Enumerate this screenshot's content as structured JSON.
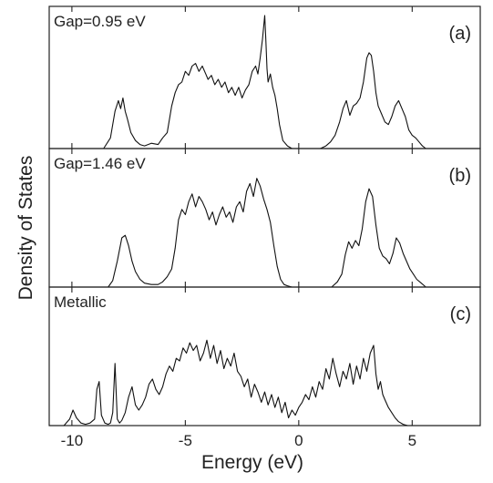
{
  "chart_data": {
    "type": "line",
    "ylabel": "Density of States",
    "xlabel": "Energy (eV)",
    "xlim": [
      -11,
      8
    ],
    "xticks": [
      -10,
      -5,
      0,
      5
    ],
    "xtick_labels": [
      "-10",
      "-5",
      "0",
      "5"
    ],
    "yaxis_ticks_shown": false,
    "grid": false,
    "panels": [
      {
        "tag": "(a)",
        "annotation": "Gap=0.95 eV",
        "ylim": [
          0,
          1
        ],
        "x": [
          -11,
          -8.6,
          -8.3,
          -8.1,
          -7.95,
          -7.85,
          -7.75,
          -7.65,
          -7.55,
          -7.4,
          -7.2,
          -7.0,
          -6.8,
          -6.5,
          -6.2,
          -6.0,
          -5.8,
          -5.6,
          -5.45,
          -5.3,
          -5.15,
          -5.0,
          -4.85,
          -4.7,
          -4.55,
          -4.4,
          -4.25,
          -4.1,
          -4.0,
          -3.85,
          -3.7,
          -3.55,
          -3.4,
          -3.25,
          -3.1,
          -2.95,
          -2.8,
          -2.65,
          -2.5,
          -2.35,
          -2.2,
          -2.05,
          -1.9,
          -1.8,
          -1.7,
          -1.6,
          -1.5,
          -1.45,
          -1.4,
          -1.35,
          -1.25,
          -1.15,
          -1.05,
          -0.95,
          -0.85,
          -0.7,
          -0.5,
          -0.3,
          -0.1,
          0.05,
          0.3,
          0.95,
          1.2,
          1.4,
          1.6,
          1.8,
          1.95,
          2.1,
          2.25,
          2.4,
          2.55,
          2.7,
          2.85,
          3.0,
          3.1,
          3.2,
          3.3,
          3.4,
          3.5,
          3.65,
          3.8,
          3.95,
          4.1,
          4.25,
          4.4,
          4.55,
          4.7,
          4.85,
          5.0,
          5.15,
          5.3,
          5.45,
          5.6,
          8
        ],
        "y": [
          0,
          0,
          0.08,
          0.28,
          0.36,
          0.3,
          0.38,
          0.28,
          0.22,
          0.12,
          0.06,
          0.03,
          0.02,
          0.04,
          0.03,
          0.08,
          0.12,
          0.32,
          0.42,
          0.48,
          0.5,
          0.58,
          0.55,
          0.62,
          0.64,
          0.58,
          0.62,
          0.56,
          0.52,
          0.55,
          0.48,
          0.52,
          0.46,
          0.5,
          0.42,
          0.46,
          0.4,
          0.46,
          0.38,
          0.44,
          0.48,
          0.58,
          0.62,
          0.56,
          0.68,
          0.82,
          1.0,
          0.82,
          0.6,
          0.5,
          0.56,
          0.46,
          0.4,
          0.3,
          0.18,
          0.06,
          0.02,
          0,
          0,
          0,
          0,
          0,
          0.02,
          0.05,
          0.1,
          0.2,
          0.3,
          0.36,
          0.25,
          0.32,
          0.34,
          0.38,
          0.5,
          0.68,
          0.72,
          0.7,
          0.58,
          0.42,
          0.32,
          0.26,
          0.2,
          0.18,
          0.24,
          0.32,
          0.36,
          0.3,
          0.24,
          0.14,
          0.1,
          0.08,
          0.05,
          0.02,
          0,
          0
        ]
      },
      {
        "tag": "(b)",
        "annotation": "Gap=1.46 eV",
        "ylim": [
          0,
          1
        ],
        "x": [
          -11,
          -8.4,
          -8.2,
          -8.0,
          -7.8,
          -7.65,
          -7.5,
          -7.35,
          -7.2,
          -7.0,
          -6.8,
          -6.5,
          -6.2,
          -6.0,
          -5.8,
          -5.6,
          -5.45,
          -5.3,
          -5.15,
          -5.0,
          -4.85,
          -4.7,
          -4.55,
          -4.4,
          -4.25,
          -4.1,
          -3.95,
          -3.8,
          -3.65,
          -3.5,
          -3.35,
          -3.2,
          -3.05,
          -2.9,
          -2.75,
          -2.6,
          -2.45,
          -2.3,
          -2.15,
          -2.0,
          -1.85,
          -1.7,
          -1.55,
          -1.4,
          -1.25,
          -1.1,
          -0.95,
          -0.8,
          -0.65,
          -0.5,
          -0.3,
          -0.1,
          0.2,
          1.45,
          1.7,
          1.9,
          2.05,
          2.2,
          2.35,
          2.5,
          2.65,
          2.8,
          2.95,
          3.1,
          3.25,
          3.4,
          3.55,
          3.7,
          3.85,
          4.0,
          4.15,
          4.3,
          4.45,
          4.6,
          4.75,
          4.9,
          5.05,
          5.2,
          5.4,
          5.6,
          8
        ],
        "y": [
          0,
          0,
          0.05,
          0.2,
          0.38,
          0.4,
          0.32,
          0.2,
          0.12,
          0.06,
          0.03,
          0.02,
          0.02,
          0.04,
          0.08,
          0.14,
          0.3,
          0.52,
          0.6,
          0.56,
          0.66,
          0.72,
          0.62,
          0.7,
          0.66,
          0.6,
          0.52,
          0.58,
          0.48,
          0.56,
          0.62,
          0.54,
          0.58,
          0.5,
          0.62,
          0.66,
          0.58,
          0.74,
          0.8,
          0.7,
          0.84,
          0.78,
          0.68,
          0.6,
          0.5,
          0.32,
          0.16,
          0.06,
          0.02,
          0.01,
          0,
          0,
          0,
          0,
          0.04,
          0.1,
          0.25,
          0.35,
          0.3,
          0.36,
          0.32,
          0.45,
          0.66,
          0.76,
          0.7,
          0.48,
          0.3,
          0.24,
          0.22,
          0.18,
          0.26,
          0.38,
          0.34,
          0.26,
          0.2,
          0.14,
          0.1,
          0.06,
          0.03,
          0,
          0
        ]
      },
      {
        "tag": "(c)",
        "annotation": "Metallic",
        "ylim": [
          0,
          1
        ],
        "x": [
          -11,
          -10.35,
          -10.1,
          -9.95,
          -9.8,
          -9.6,
          -9.4,
          -9.2,
          -9.0,
          -8.9,
          -8.8,
          -8.7,
          -8.55,
          -8.4,
          -8.3,
          -8.2,
          -8.1,
          -8.0,
          -7.9,
          -7.8,
          -7.65,
          -7.5,
          -7.35,
          -7.2,
          -7.05,
          -6.9,
          -6.75,
          -6.6,
          -6.45,
          -6.3,
          -6.15,
          -6.0,
          -5.85,
          -5.7,
          -5.55,
          -5.4,
          -5.25,
          -5.1,
          -4.95,
          -4.8,
          -4.65,
          -4.5,
          -4.35,
          -4.2,
          -4.05,
          -3.9,
          -3.75,
          -3.6,
          -3.45,
          -3.3,
          -3.15,
          -3.0,
          -2.85,
          -2.7,
          -2.55,
          -2.4,
          -2.25,
          -2.1,
          -1.95,
          -1.8,
          -1.65,
          -1.5,
          -1.35,
          -1.2,
          -1.05,
          -0.9,
          -0.75,
          -0.6,
          -0.45,
          -0.3,
          -0.15,
          0.0,
          0.15,
          0.3,
          0.45,
          0.6,
          0.75,
          0.9,
          1.05,
          1.2,
          1.35,
          1.5,
          1.65,
          1.8,
          1.95,
          2.1,
          2.25,
          2.4,
          2.55,
          2.7,
          2.85,
          3.0,
          3.15,
          3.3,
          3.4,
          3.5,
          3.6,
          3.7,
          3.8,
          3.95,
          4.1,
          4.25,
          4.4,
          4.6,
          4.8,
          8
        ],
        "y": [
          0,
          0,
          0.05,
          0.12,
          0.06,
          0.02,
          0.01,
          0.02,
          0.05,
          0.28,
          0.34,
          0.08,
          0.02,
          0.01,
          0.02,
          0.1,
          0.48,
          0.05,
          0.02,
          0.04,
          0.1,
          0.22,
          0.3,
          0.16,
          0.12,
          0.16,
          0.22,
          0.32,
          0.36,
          0.28,
          0.24,
          0.3,
          0.4,
          0.46,
          0.42,
          0.52,
          0.5,
          0.6,
          0.56,
          0.64,
          0.58,
          0.62,
          0.5,
          0.56,
          0.66,
          0.52,
          0.62,
          0.48,
          0.58,
          0.44,
          0.52,
          0.46,
          0.56,
          0.42,
          0.38,
          0.3,
          0.36,
          0.22,
          0.32,
          0.26,
          0.18,
          0.26,
          0.16,
          0.24,
          0.14,
          0.22,
          0.1,
          0.18,
          0.06,
          0.12,
          0.08,
          0.14,
          0.18,
          0.24,
          0.2,
          0.3,
          0.22,
          0.34,
          0.28,
          0.44,
          0.36,
          0.52,
          0.4,
          0.3,
          0.42,
          0.36,
          0.48,
          0.32,
          0.46,
          0.36,
          0.52,
          0.42,
          0.56,
          0.62,
          0.4,
          0.28,
          0.34,
          0.24,
          0.2,
          0.14,
          0.1,
          0.06,
          0.03,
          0.01,
          0,
          0
        ]
      }
    ]
  }
}
